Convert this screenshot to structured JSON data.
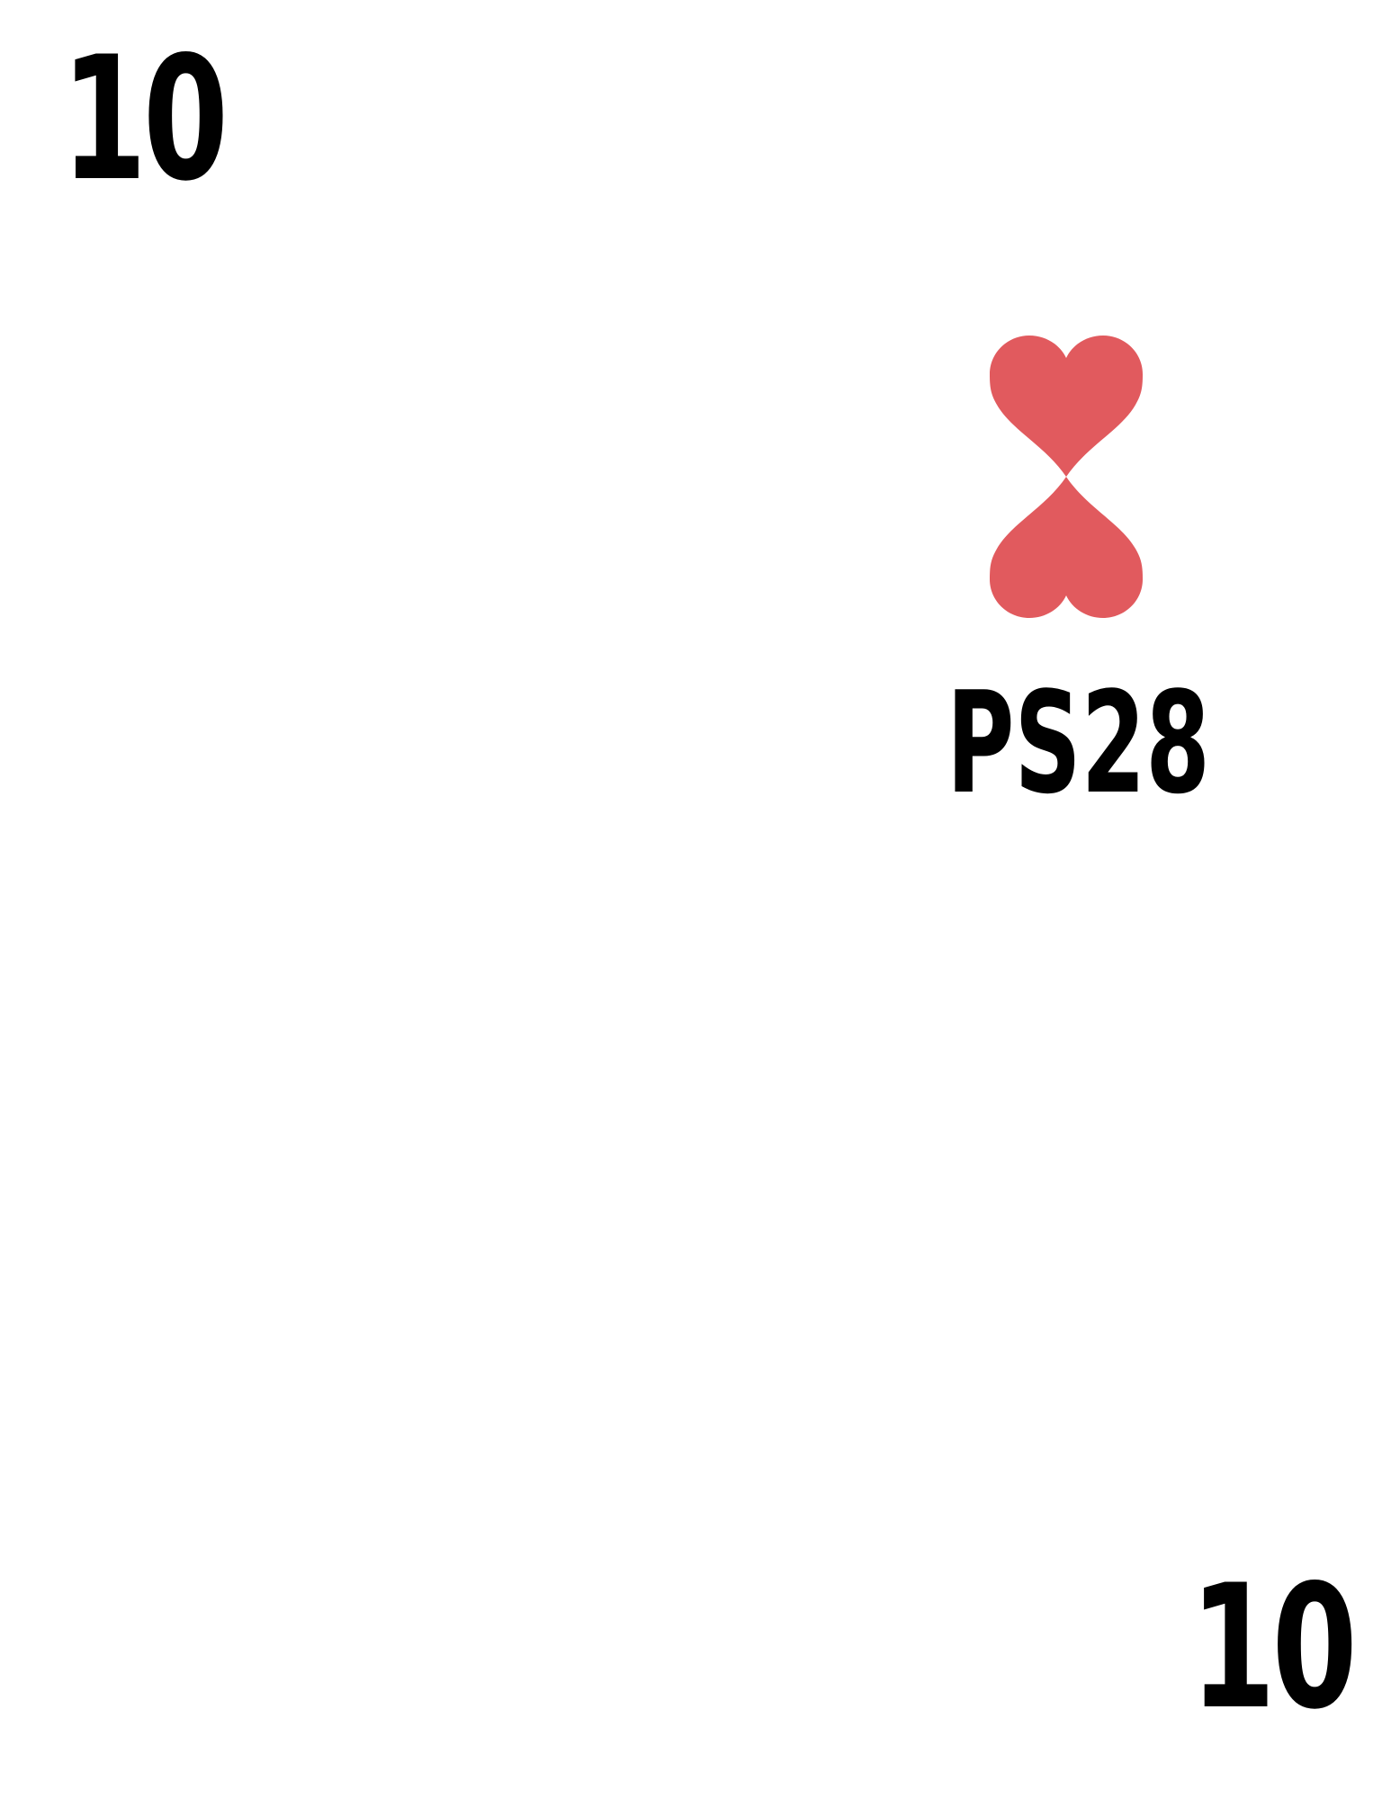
{
  "card": {
    "rank": "10",
    "code": "PS28",
    "suit_icon": "heart-icon",
    "suit_color": "#E15A5E",
    "text_color": "#000000",
    "background": "#FFFFFF"
  }
}
